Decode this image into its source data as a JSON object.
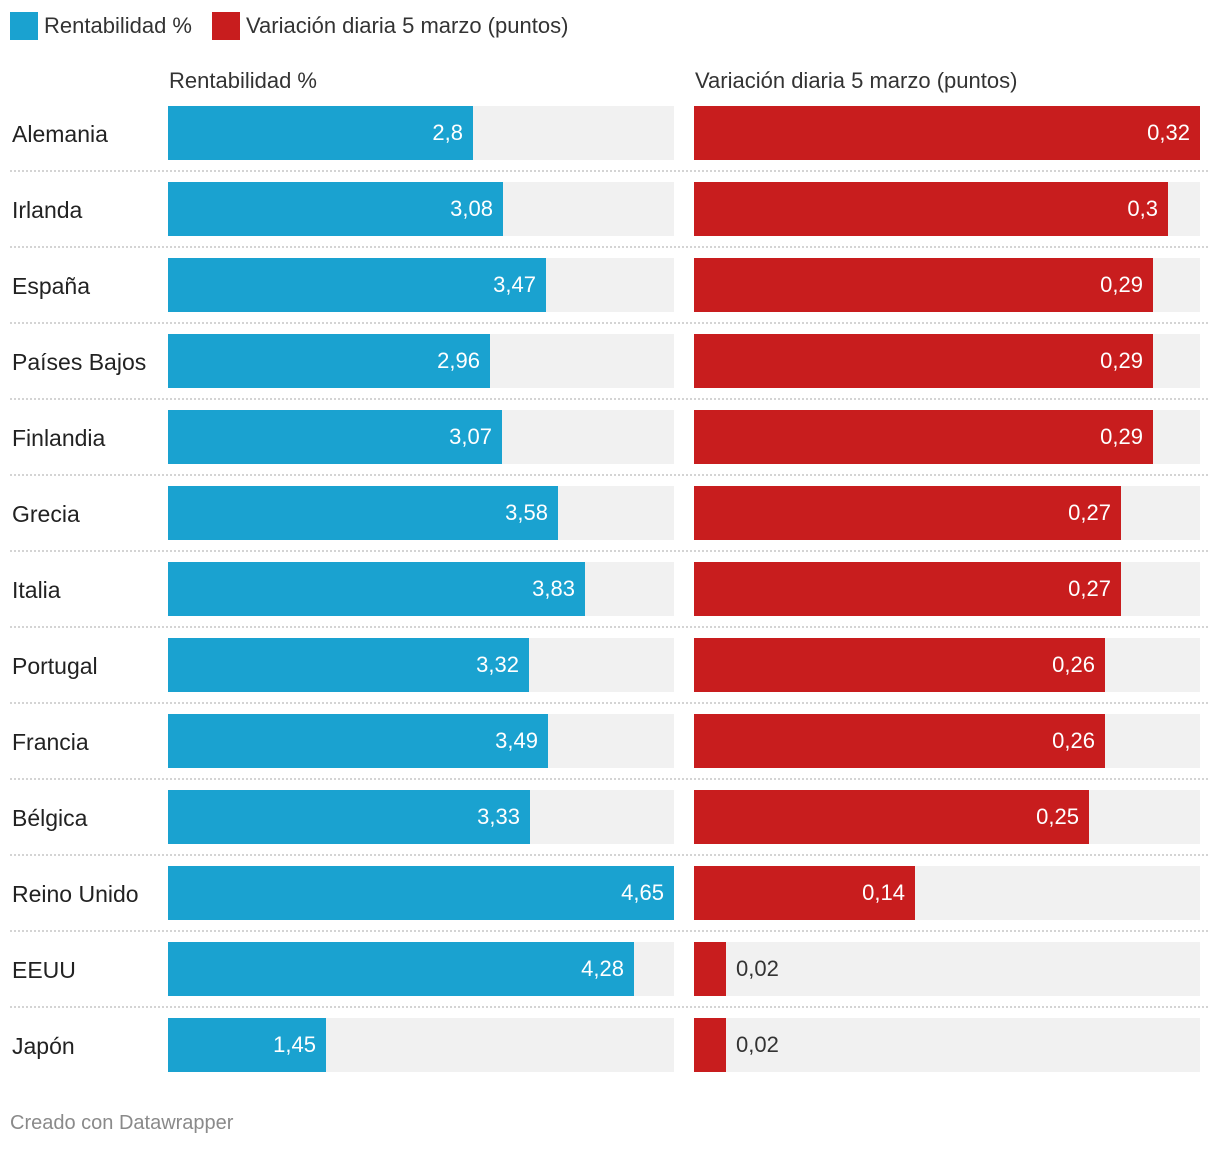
{
  "legend": {
    "items": [
      {
        "label": "Rentabilidad %",
        "color": "#1aa2d0"
      },
      {
        "label": "Variación diaria 5 marzo (puntos)",
        "color": "#c81d1e"
      }
    ]
  },
  "footer": {
    "credit": "Creado con Datawrapper"
  },
  "chart_data": {
    "type": "bar",
    "orientation": "horizontal",
    "layout": "split-columns",
    "categories": [
      "Alemania",
      "Irlanda",
      "España",
      "Países Bajos",
      "Finlandia",
      "Grecia",
      "Italia",
      "Portugal",
      "Francia",
      "Bélgica",
      "Reino Unido",
      "EEUU",
      "Japón"
    ],
    "series": [
      {
        "name": "Rentabilidad %",
        "color": "#1aa2d0",
        "max": 4.65,
        "values": [
          2.8,
          3.08,
          3.47,
          2.96,
          3.07,
          3.58,
          3.83,
          3.32,
          3.49,
          3.33,
          4.65,
          4.28,
          1.45
        ],
        "labels": [
          "2,8",
          "3,08",
          "3,47",
          "2,96",
          "3,07",
          "3,58",
          "3,83",
          "3,32",
          "3,49",
          "3,33",
          "4,65",
          "4,28",
          "1,45"
        ]
      },
      {
        "name": "Variación diaria 5 marzo (puntos)",
        "color": "#c81d1e",
        "max": 0.32,
        "values": [
          0.32,
          0.3,
          0.29,
          0.29,
          0.29,
          0.27,
          0.27,
          0.26,
          0.26,
          0.25,
          0.14,
          0.02,
          0.02
        ],
        "labels": [
          "0,32",
          "0,3",
          "0,29",
          "0,29",
          "0,29",
          "0,27",
          "0,27",
          "0,26",
          "0,26",
          "0,25",
          "0,14",
          "0,02",
          "0,02"
        ]
      }
    ],
    "track_color": "#f1f1f1",
    "title": "",
    "xlabel": "",
    "ylabel": ""
  }
}
